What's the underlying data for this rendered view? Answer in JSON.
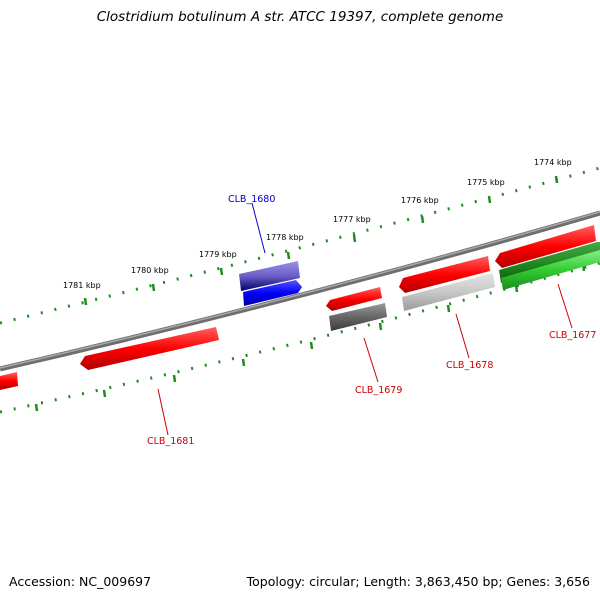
{
  "title": "Clostridium botulinum A str. ATCC 19397, complete genome",
  "footer": {
    "accession": "Accession: NC_009697",
    "topology": "Topology: circular; Length: 3,863,450 bp; Genes: 3,656"
  },
  "colors": {
    "forward_gene": "#ff0000",
    "reverse_gene": "#ff0000",
    "highlight_gene_top": "#7a6fd0",
    "highlight_gene": "#0000ff",
    "grey_gene": "#666666",
    "light_grey_gene": "#c8c8c8",
    "green_gene": "#33cc33",
    "dark_green_gene": "#228b22",
    "backbone": "#808080",
    "ticks": "#228b22",
    "label_blue": "#0000cc",
    "label_red": "#cc0000"
  },
  "kbp_labels": [
    "1781 kbp",
    "1780 kbp",
    "1779 kbp",
    "1778 kbp",
    "1777 kbp",
    "1776 kbp",
    "1775 kbp",
    "1774 kbp"
  ],
  "gene_labels": {
    "clb1680": "CLB_1680",
    "clb1681": "CLB_1681",
    "clb1679": "CLB_1679",
    "clb1678": "CLB_1678",
    "clb1677": "CLB_1677"
  }
}
